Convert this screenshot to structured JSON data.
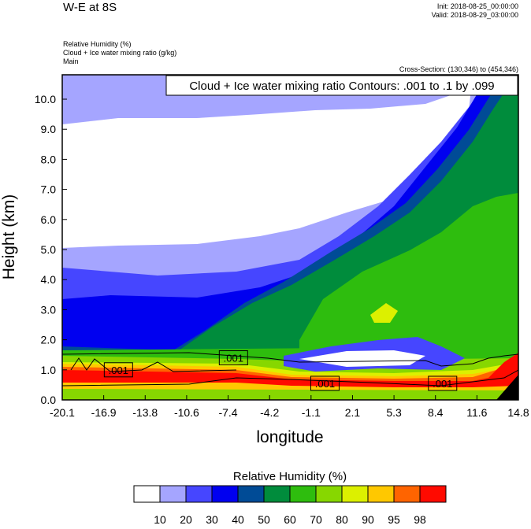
{
  "header": {
    "title": "W-E at 8S",
    "init": "Init: 2018-08-25_00:00:00",
    "valid": "Valid: 2018-08-29_03:00:00",
    "fields": [
      "Relative Humidity   (%)",
      "Cloud + Ice water mixing ratio   (g/kg)",
      "Main"
    ],
    "cross_section": "Cross-Section: (130,346) to (454,346)"
  },
  "chart_data": {
    "type": "heatmap",
    "subtype": "filled contour cross-section with line contour overlay",
    "xlabel": "longitude",
    "ylabel": "Height (km)",
    "xticks": [
      "-20.1",
      "-16.9",
      "-13.8",
      "-10.6",
      "-7.4",
      "-4.2",
      "-1.1",
      "2.1",
      "5.3",
      "8.4",
      "11.6",
      "14.8"
    ],
    "yticks": [
      "0.0",
      "1.0",
      "2.0",
      "3.0",
      "4.0",
      "5.0",
      "6.0",
      "7.0",
      "8.0",
      "9.0",
      "10.0"
    ],
    "xlim": [
      -20.1,
      14.8
    ],
    "ylim": [
      0,
      10.8
    ],
    "grid": false,
    "contour_info": "Cloud + Ice water mixing ratio Contours: .001 to .1 by .099",
    "contour_labels": [
      {
        "text": ".001",
        "lon": -15.8,
        "height": 1.0
      },
      {
        "text": ".001",
        "lon": -7.0,
        "height": 1.4
      },
      {
        "text": ".001",
        "lon": 0.0,
        "height": 0.55
      },
      {
        "text": ".001",
        "lon": 9.0,
        "height": 0.55
      }
    ],
    "colorbar": {
      "title": "Relative Humidity  (%)",
      "levels": [
        "10",
        "20",
        "30",
        "40",
        "50",
        "60",
        "70",
        "80",
        "90",
        "95",
        "98"
      ],
      "colors": [
        "#ffffff",
        "#a5a5ff",
        "#4646ff",
        "#0000f0",
        "#004b96",
        "#008c3c",
        "#2ebd0e",
        "#87d700",
        "#dcf000",
        "#ffc800",
        "#ff6400",
        "#ff0a00"
      ]
    }
  }
}
